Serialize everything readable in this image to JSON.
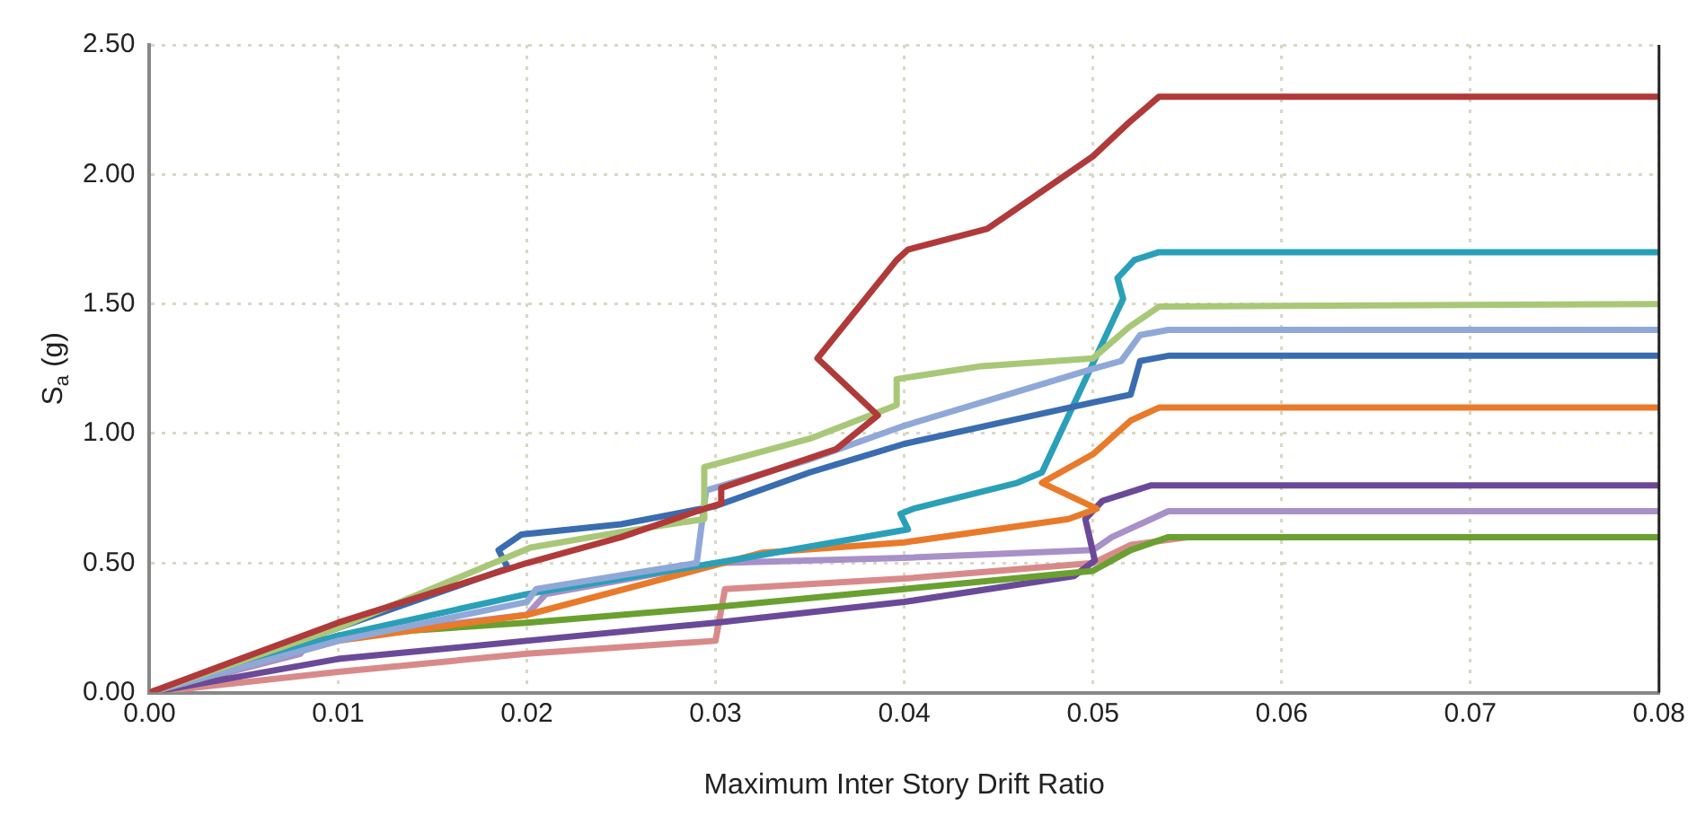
{
  "chart_data": {
    "type": "line",
    "xlabel": "Maximum Inter Story Drift Ratio",
    "ylabel": "S$_{a}$ (g)",
    "xlim": [
      0,
      0.08
    ],
    "ylim": [
      0,
      2.5
    ],
    "xticks": [
      {
        "value": 0,
        "label": "0.00"
      },
      {
        "value": 0.01,
        "label": "0.01"
      },
      {
        "value": 0.02,
        "label": "0.02"
      },
      {
        "value": 0.03,
        "label": "0.03"
      },
      {
        "value": 0.04,
        "label": "0.04"
      },
      {
        "value": 0.05,
        "label": "0.05"
      },
      {
        "value": 0.06,
        "label": "0.06"
      },
      {
        "value": 0.07,
        "label": "0.07"
      },
      {
        "value": 0.08,
        "label": "0.08"
      }
    ],
    "yticks": [
      {
        "value": 0,
        "label": "0.00"
      },
      {
        "value": 0.5,
        "label": "0.50"
      },
      {
        "value": 1,
        "label": "1.00"
      },
      {
        "value": 1.5,
        "label": "1.50"
      },
      {
        "value": 2,
        "label": "2.00"
      },
      {
        "value": 2.5,
        "label": "2.50"
      }
    ],
    "grid": true,
    "legend": false,
    "marker": "none",
    "line_style": "solid",
    "series": [
      {
        "color": "#b03a3a",
        "x": [
          0,
          0.01,
          0.02,
          0.025,
          0.029,
          0.0303,
          0.0303,
          0.0364,
          0.0386,
          0.0354,
          0.0396,
          0.0402,
          0.0444,
          0.0464,
          0.05,
          0.0519,
          0.0535,
          0.08
        ],
        "values": [
          0,
          0.27,
          0.5,
          0.6,
          0.7,
          0.73,
          0.79,
          0.94,
          1.07,
          1.29,
          1.67,
          1.71,
          1.79,
          1.89,
          2.07,
          2.2,
          2.3,
          2.3
        ]
      },
      {
        "color": "#a8c878",
        "x": [
          0,
          0.01,
          0.0202,
          0.025,
          0.0294,
          0.0294,
          0.035,
          0.0396,
          0.0396,
          0.0441,
          0.05,
          0.0519,
          0.0535,
          0.08
        ],
        "values": [
          0,
          0.25,
          0.56,
          0.62,
          0.67,
          0.87,
          0.98,
          1.11,
          1.21,
          1.26,
          1.29,
          1.41,
          1.49,
          1.5
        ]
      },
      {
        "color": "#8fa8d8",
        "x": [
          0,
          0.01,
          0.02,
          0.0205,
          0.029,
          0.0295,
          0.035,
          0.04,
          0.045,
          0.05,
          0.0515,
          0.0525,
          0.054,
          0.08
        ],
        "values": [
          0,
          0.2,
          0.35,
          0.4,
          0.5,
          0.78,
          0.9,
          1.03,
          1.14,
          1.25,
          1.28,
          1.38,
          1.4,
          1.4
        ]
      },
      {
        "color": "#3a6cb0",
        "x": [
          0,
          0.01,
          0.019,
          0.0185,
          0.0197,
          0.025,
          0.03,
          0.035,
          0.04,
          0.045,
          0.05,
          0.052,
          0.0525,
          0.054,
          0.08
        ],
        "values": [
          0,
          0.25,
          0.48,
          0.55,
          0.61,
          0.65,
          0.72,
          0.85,
          0.96,
          1.04,
          1.12,
          1.15,
          1.28,
          1.3,
          1.3
        ]
      },
      {
        "color": "#2aa0b8",
        "x": [
          0,
          0.01,
          0.02,
          0.03,
          0.0402,
          0.0398,
          0.0405,
          0.046,
          0.0473,
          0.0516,
          0.0513,
          0.0522,
          0.0535,
          0.08
        ],
        "values": [
          0,
          0.22,
          0.38,
          0.5,
          0.63,
          0.69,
          0.71,
          0.81,
          0.85,
          1.52,
          1.6,
          1.67,
          1.7,
          1.7
        ]
      },
      {
        "color": "#e87a2a",
        "x": [
          0,
          0.01,
          0.02,
          0.0325,
          0.04,
          0.0487,
          0.0502,
          0.0473,
          0.05,
          0.052,
          0.0535,
          0.08
        ],
        "values": [
          0,
          0.2,
          0.3,
          0.54,
          0.58,
          0.67,
          0.71,
          0.81,
          0.92,
          1.05,
          1.1,
          1.1
        ]
      },
      {
        "color": "#6aa030",
        "x": [
          0,
          0.01,
          0.02,
          0.03,
          0.04,
          0.05,
          0.052,
          0.054,
          0.08
        ],
        "values": [
          0,
          0.22,
          0.27,
          0.33,
          0.4,
          0.47,
          0.55,
          0.6,
          0.6
        ]
      },
      {
        "color": "#6a4a98",
        "x": [
          0,
          0.01,
          0.02,
          0.03,
          0.04,
          0.049,
          0.0501,
          0.0496,
          0.0505,
          0.0531,
          0.08
        ],
        "values": [
          0,
          0.13,
          0.2,
          0.27,
          0.35,
          0.45,
          0.51,
          0.67,
          0.74,
          0.8,
          0.8
        ]
      },
      {
        "color": "#a890c8",
        "x": [
          0,
          0.008,
          0.0085,
          0.02,
          0.021,
          0.03,
          0.04,
          0.05,
          0.051,
          0.054,
          0.08
        ],
        "values": [
          0,
          0.15,
          0.2,
          0.3,
          0.38,
          0.5,
          0.52,
          0.55,
          0.6,
          0.7,
          0.7
        ]
      },
      {
        "color": "#d88a8a",
        "x": [
          0,
          0.01,
          0.02,
          0.03,
          0.0305,
          0.04,
          0.05,
          0.052,
          0.055,
          0.08
        ],
        "values": [
          0,
          0.08,
          0.15,
          0.2,
          0.4,
          0.44,
          0.5,
          0.57,
          0.6,
          0.6
        ]
      }
    ]
  }
}
